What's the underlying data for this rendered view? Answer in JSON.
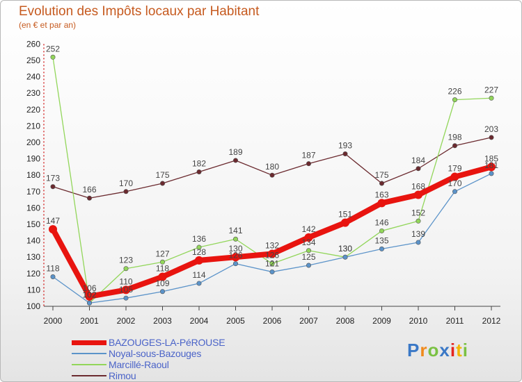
{
  "chart_data": {
    "type": "line",
    "title": "Evolution des Impôts locaux par Habitant",
    "subtitle": "(en € et par an)",
    "xlabel": "",
    "ylabel": "",
    "categories": [
      "2000",
      "2001",
      "2002",
      "2003",
      "2004",
      "2005",
      "2006",
      "2007",
      "2008",
      "2009",
      "2010",
      "2011",
      "2012"
    ],
    "ylim": [
      100,
      260
    ],
    "yticks": [
      100,
      110,
      120,
      130,
      140,
      150,
      160,
      170,
      180,
      190,
      200,
      210,
      220,
      230,
      240,
      250,
      260
    ],
    "grid": false,
    "legend_position": "bottom-left",
    "series": [
      {
        "name": "Rimou",
        "color": "#6b2a2f",
        "values": [
          173,
          166,
          170,
          175,
          182,
          189,
          180,
          187,
          193,
          175,
          184,
          198,
          203
        ]
      },
      {
        "name": "Marcillé-Raoul",
        "color": "#92d65a",
        "values": [
          252,
          102,
          123,
          127,
          136,
          141,
          126,
          134,
          130,
          146,
          152,
          226,
          227
        ]
      },
      {
        "name": "Noyal-sous-Bazouges",
        "color": "#5b93c9",
        "values": [
          118,
          102,
          105,
          109,
          114,
          126,
          121,
          125,
          130,
          135,
          139,
          170,
          181
        ]
      },
      {
        "name": "BAZOUGES-LA-PéROUSE",
        "color": "#e8140f",
        "values": [
          147,
          106,
          110,
          118,
          128,
          130,
          132,
          142,
          151,
          163,
          168,
          179,
          185
        ]
      }
    ],
    "legend": [
      "BAZOUGES-LA-PéROUSE",
      "Noyal-sous-Bazouges",
      "Marcillé-Raoul",
      "Rimou"
    ]
  },
  "logo": {
    "text": "Proxiti",
    "colors": [
      "#3a78c6",
      "#f08a1c",
      "#7ac143",
      "#3a78c6",
      "#e52620",
      "#f2b705",
      "#7ac143"
    ]
  }
}
